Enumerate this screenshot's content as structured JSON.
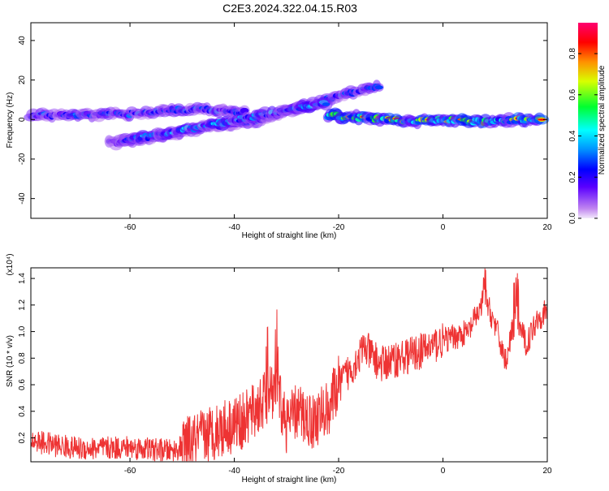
{
  "title": "C2E3.2024.322.04.15.R03",
  "chart_data": [
    {
      "type": "heatmap",
      "xlabel": "Height of straight line (km)",
      "ylabel": "Frequency (Hz)",
      "xlim": [
        -79,
        20
      ],
      "ylim": [
        -50,
        49
      ],
      "xticks": [
        -60,
        -40,
        -20,
        0,
        20
      ],
      "yticks": [
        -40,
        -20,
        0,
        20,
        40
      ],
      "colorbar": {
        "label": "Normalized spectral amplitude",
        "range": [
          0,
          0.95
        ],
        "ticks": [
          0.0,
          0.2,
          0.4,
          0.6,
          0.8
        ]
      },
      "traces": [
        {
          "name": "upper-left band",
          "x": [
            -79,
            -70,
            -60,
            -55,
            -50,
            -45,
            -38
          ],
          "y": [
            2,
            2,
            3,
            4,
            5,
            5,
            4
          ],
          "amp": 0.4
        },
        {
          "name": "rising branch",
          "x": [
            -64,
            -55,
            -45,
            -35,
            -30,
            -25,
            -20,
            -15,
            -12
          ],
          "y": [
            -12,
            -9,
            -4,
            0,
            4,
            8,
            12,
            15,
            17
          ],
          "amp": 0.35
        },
        {
          "name": "lower rising branch",
          "x": [
            -62,
            -55,
            -45,
            -35,
            -28,
            -22
          ],
          "y": [
            -11,
            -8,
            -3,
            2,
            6,
            9
          ],
          "amp": 0.5
        },
        {
          "name": "main flat band",
          "x": [
            -22,
            -15,
            -10,
            -5,
            0,
            5,
            10,
            15,
            19
          ],
          "y": [
            2,
            1,
            0,
            -1,
            0,
            -1,
            -1,
            0,
            0
          ],
          "amp": 0.85
        }
      ]
    },
    {
      "type": "line",
      "xlabel": "Height of straight line (km)",
      "ylabel": "SNR (10 * v/v)",
      "yunit": "(x10⁴)",
      "xlim": [
        -79,
        20
      ],
      "ylim": [
        0.02,
        1.48
      ],
      "xticks": [
        -60,
        -40,
        -20,
        0,
        20
      ],
      "yticks": [
        0.2,
        0.4,
        0.6,
        0.8,
        1.0,
        1.2,
        1.4
      ],
      "color": "#ee3333",
      "series": [
        {
          "x": [
            -79,
            -75,
            -70,
            -65,
            -60,
            -55,
            -52,
            -48,
            -45,
            -42,
            -38,
            -35,
            -32,
            -30,
            -28,
            -25,
            -22,
            -20,
            -18,
            -15,
            -12,
            -10,
            -5,
            0,
            5,
            8,
            10,
            12,
            14,
            16,
            18,
            20
          ],
          "y": [
            0.18,
            0.15,
            0.12,
            0.12,
            0.13,
            0.11,
            0.1,
            0.16,
            0.23,
            0.28,
            0.33,
            0.45,
            0.58,
            0.3,
            0.4,
            0.32,
            0.42,
            0.6,
            0.7,
            0.88,
            0.75,
            0.78,
            0.84,
            0.93,
            1.0,
            1.25,
            1.05,
            0.78,
            1.12,
            0.9,
            1.1,
            1.15
          ]
        }
      ]
    }
  ]
}
